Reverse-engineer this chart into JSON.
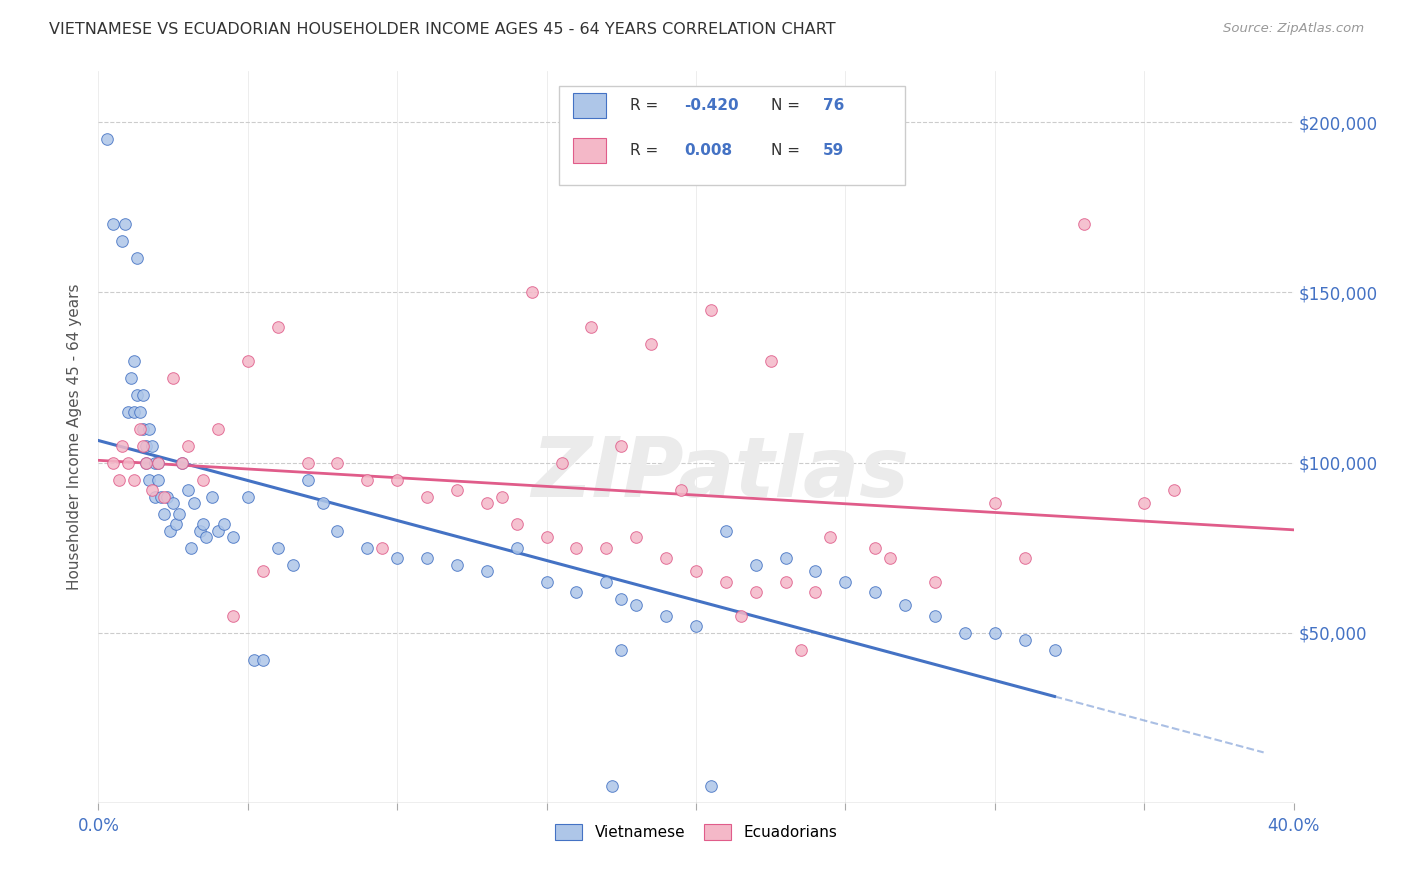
{
  "title": "VIETNAMESE VS ECUADORIAN HOUSEHOLDER INCOME AGES 45 - 64 YEARS CORRELATION CHART",
  "source": "Source: ZipAtlas.com",
  "xlabel_ticks": [
    "0.0%",
    "",
    "",
    "",
    "",
    "",
    "",
    "",
    "40.0%"
  ],
  "xlabel_vals": [
    0.0,
    5.0,
    10.0,
    15.0,
    20.0,
    25.0,
    30.0,
    35.0,
    40.0
  ],
  "ylabel_right_ticks": [
    "$50,000",
    "$100,000",
    "$150,000",
    "$200,000"
  ],
  "ylabel_right_vals": [
    50000,
    100000,
    150000,
    200000
  ],
  "ylabel_label": "Householder Income Ages 45 - 64 years",
  "viet_color": "#aec6e8",
  "ecua_color": "#f4b8c8",
  "viet_line_color": "#4472c4",
  "ecua_line_color": "#e05c8a",
  "r_viet": -0.42,
  "n_viet": 76,
  "r_ecua": 0.008,
  "n_ecua": 59,
  "watermark": "ZIPatlas",
  "background_color": "#ffffff",
  "xlim": [
    0.0,
    40.0
  ],
  "ylim": [
    0,
    215000
  ],
  "legend_text_color": "#4472c4",
  "viet_x": [
    0.3,
    0.5,
    0.8,
    0.9,
    1.0,
    1.1,
    1.2,
    1.2,
    1.3,
    1.3,
    1.4,
    1.5,
    1.5,
    1.6,
    1.6,
    1.7,
    1.7,
    1.8,
    1.9,
    1.9,
    2.0,
    2.0,
    2.1,
    2.2,
    2.3,
    2.4,
    2.5,
    2.6,
    2.7,
    2.8,
    3.0,
    3.1,
    3.2,
    3.4,
    3.5,
    3.6,
    3.8,
    4.0,
    4.2,
    4.5,
    5.0,
    5.2,
    5.5,
    6.0,
    6.5,
    7.0,
    7.5,
    8.0,
    9.0,
    10.0,
    11.0,
    12.0,
    13.0,
    14.0,
    15.0,
    16.0,
    17.0,
    17.5,
    18.0,
    19.0,
    20.0,
    21.0,
    22.0,
    23.0,
    24.0,
    25.0,
    26.0,
    27.0,
    28.0,
    29.0,
    30.0,
    31.0,
    32.0,
    17.2,
    20.5,
    17.5
  ],
  "viet_y": [
    195000,
    170000,
    165000,
    170000,
    115000,
    125000,
    130000,
    115000,
    120000,
    160000,
    115000,
    120000,
    110000,
    105000,
    100000,
    110000,
    95000,
    105000,
    100000,
    90000,
    95000,
    100000,
    90000,
    85000,
    90000,
    80000,
    88000,
    82000,
    85000,
    100000,
    92000,
    75000,
    88000,
    80000,
    82000,
    78000,
    90000,
    80000,
    82000,
    78000,
    90000,
    42000,
    42000,
    75000,
    70000,
    95000,
    88000,
    80000,
    75000,
    72000,
    72000,
    70000,
    68000,
    75000,
    65000,
    62000,
    65000,
    60000,
    58000,
    55000,
    52000,
    80000,
    70000,
    72000,
    68000,
    65000,
    62000,
    58000,
    55000,
    50000,
    50000,
    48000,
    45000,
    5000,
    5000,
    45000
  ],
  "ecua_x": [
    0.5,
    0.7,
    0.8,
    1.0,
    1.2,
    1.4,
    1.5,
    1.6,
    1.8,
    2.0,
    2.2,
    2.5,
    2.8,
    3.0,
    3.5,
    4.0,
    5.0,
    6.0,
    7.0,
    8.0,
    9.0,
    10.0,
    11.0,
    12.0,
    13.0,
    14.0,
    15.0,
    16.0,
    17.0,
    18.0,
    19.0,
    20.0,
    21.0,
    22.0,
    23.0,
    24.0,
    26.0,
    28.0,
    30.0,
    31.0,
    33.0,
    35.0,
    4.5,
    5.5,
    9.5,
    13.5,
    15.5,
    17.5,
    19.5,
    21.5,
    23.5,
    14.5,
    16.5,
    18.5,
    20.5,
    22.5,
    24.5,
    26.5,
    36.0
  ],
  "ecua_y": [
    100000,
    95000,
    105000,
    100000,
    95000,
    110000,
    105000,
    100000,
    92000,
    100000,
    90000,
    125000,
    100000,
    105000,
    95000,
    110000,
    130000,
    140000,
    100000,
    100000,
    95000,
    95000,
    90000,
    92000,
    88000,
    82000,
    78000,
    75000,
    75000,
    78000,
    72000,
    68000,
    65000,
    62000,
    65000,
    62000,
    75000,
    65000,
    88000,
    72000,
    170000,
    88000,
    55000,
    68000,
    75000,
    90000,
    100000,
    105000,
    92000,
    55000,
    45000,
    150000,
    140000,
    135000,
    145000,
    130000,
    78000,
    72000,
    92000
  ]
}
